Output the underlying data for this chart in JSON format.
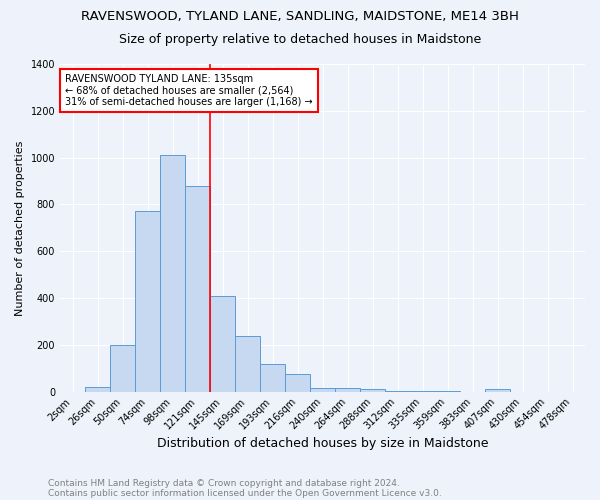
{
  "title": "RAVENSWOOD, TYLAND LANE, SANDLING, MAIDSTONE, ME14 3BH",
  "subtitle": "Size of property relative to detached houses in Maidstone",
  "xlabel": "Distribution of detached houses by size in Maidstone",
  "ylabel": "Number of detached properties",
  "categories": [
    "2sqm",
    "26sqm",
    "50sqm",
    "74sqm",
    "98sqm",
    "121sqm",
    "145sqm",
    "169sqm",
    "193sqm",
    "216sqm",
    "240sqm",
    "264sqm",
    "288sqm",
    "312sqm",
    "335sqm",
    "359sqm",
    "383sqm",
    "407sqm",
    "430sqm",
    "454sqm",
    "478sqm"
  ],
  "values": [
    0,
    20,
    200,
    770,
    1010,
    880,
    410,
    240,
    120,
    75,
    15,
    15,
    10,
    5,
    5,
    2,
    0,
    12,
    0,
    0,
    0
  ],
  "bar_color": "#c6d9f0",
  "bar_edge_color": "#5b9bd5",
  "vline_color": "red",
  "vline_pos": 5.5,
  "annotation_text": "RAVENSWOOD TYLAND LANE: 135sqm\n← 68% of detached houses are smaller (2,564)\n31% of semi-detached houses are larger (1,168) →",
  "annotation_box_color": "white",
  "annotation_box_edge": "red",
  "ylim": [
    0,
    1400
  ],
  "yticks": [
    0,
    200,
    400,
    600,
    800,
    1000,
    1200,
    1400
  ],
  "footnote1": "Contains HM Land Registry data © Crown copyright and database right 2024.",
  "footnote2": "Contains public sector information licensed under the Open Government Licence v3.0.",
  "title_fontsize": 9.5,
  "subtitle_fontsize": 9,
  "xlabel_fontsize": 9,
  "ylabel_fontsize": 8,
  "tick_fontsize": 7,
  "annot_fontsize": 7,
  "footnote_fontsize": 6.5,
  "background_color": "#eef2fb"
}
